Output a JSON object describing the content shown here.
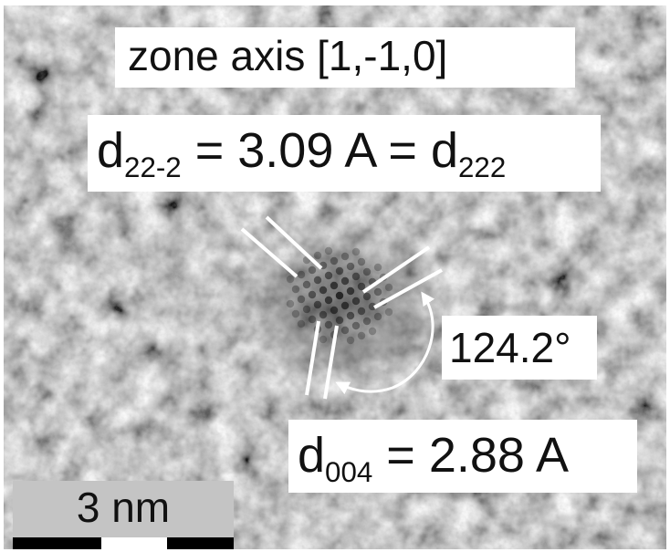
{
  "labels": {
    "zone_axis": "zone axis [1,-1,0]",
    "d22_main": "d",
    "d22_sub": "22-2",
    "d22_value": " = 3.09 A = d",
    "d222_sub": "222",
    "angle": "124.2°",
    "d004_main": "d",
    "d004_sub": "004",
    "d004_value": " = 2.88 A"
  },
  "scalebar": {
    "text": "3 nm"
  },
  "colors": {
    "annotation_lines": "#ffffff",
    "label_background": "#ffffff",
    "scalebar_background": "#c4c4c4"
  }
}
